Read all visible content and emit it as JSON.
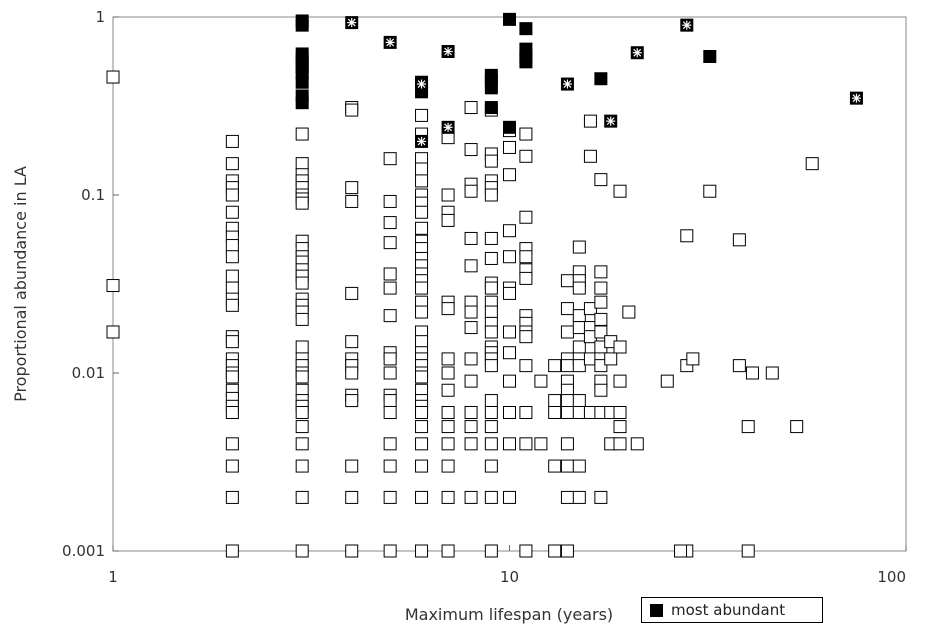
{
  "chart_data": {
    "type": "scatter",
    "title": "",
    "xlabel": "Maximum lifespan (years)",
    "ylabel": "Proportional abundance in LA",
    "x_scale": "log",
    "y_scale": "log",
    "xlim": [
      1,
      100
    ],
    "ylim": [
      0.001,
      1
    ],
    "x_ticks": [
      "1",
      "10",
      "100"
    ],
    "y_ticks": [
      "0.001",
      "0.01",
      "0.1",
      "1"
    ],
    "grid": false,
    "legend": {
      "position": "bottom-right",
      "entries": [
        "most abundant"
      ]
    },
    "series": [
      {
        "marker": "open-square",
        "points": [
          [
            1,
            0.46
          ],
          [
            1,
            0.031
          ],
          [
            1,
            0.017
          ],
          [
            2,
            0.2
          ],
          [
            2,
            0.15
          ],
          [
            2,
            0.12
          ],
          [
            2,
            0.11
          ],
          [
            2,
            0.1
          ],
          [
            2,
            0.08
          ],
          [
            2,
            0.065
          ],
          [
            2,
            0.058
          ],
          [
            2,
            0.052
          ],
          [
            2,
            0.045
          ],
          [
            2,
            0.035
          ],
          [
            2,
            0.03
          ],
          [
            2,
            0.026
          ],
          [
            2,
            0.024
          ],
          [
            2,
            0.016
          ],
          [
            2,
            0.015
          ],
          [
            2,
            0.012
          ],
          [
            2,
            0.011
          ],
          [
            2,
            0.01
          ],
          [
            2,
            0.0095
          ],
          [
            2,
            0.008
          ],
          [
            2,
            0.0072
          ],
          [
            2,
            0.0065
          ],
          [
            2,
            0.006
          ],
          [
            2,
            0.004
          ],
          [
            2,
            0.003
          ],
          [
            2,
            0.002
          ],
          [
            2,
            0.001
          ],
          [
            3,
            0.22
          ],
          [
            3,
            0.15
          ],
          [
            3,
            0.13
          ],
          [
            3,
            0.12
          ],
          [
            3,
            0.11
          ],
          [
            3,
            0.1
          ],
          [
            3,
            0.095
          ],
          [
            3,
            0.09
          ],
          [
            3,
            0.055
          ],
          [
            3,
            0.05
          ],
          [
            3,
            0.045
          ],
          [
            3,
            0.042
          ],
          [
            3,
            0.038
          ],
          [
            3,
            0.035
          ],
          [
            3,
            0.032
          ],
          [
            3,
            0.026
          ],
          [
            3,
            0.024
          ],
          [
            3,
            0.022
          ],
          [
            3,
            0.02
          ],
          [
            3,
            0.014
          ],
          [
            3,
            0.012
          ],
          [
            3,
            0.011
          ],
          [
            3,
            0.01
          ],
          [
            3,
            0.0095
          ],
          [
            3,
            0.008
          ],
          [
            3,
            0.007
          ],
          [
            3,
            0.0065
          ],
          [
            3,
            0.006
          ],
          [
            3,
            0.005
          ],
          [
            3,
            0.004
          ],
          [
            3,
            0.003
          ],
          [
            3,
            0.002
          ],
          [
            3,
            0.001
          ],
          [
            4,
            0.31
          ],
          [
            4,
            0.3
          ],
          [
            4,
            0.11
          ],
          [
            4,
            0.092
          ],
          [
            4,
            0.028
          ],
          [
            4,
            0.015
          ],
          [
            4,
            0.012
          ],
          [
            4,
            0.011
          ],
          [
            4,
            0.01
          ],
          [
            4,
            0.0075
          ],
          [
            4,
            0.007
          ],
          [
            4,
            0.003
          ],
          [
            4,
            0.002
          ],
          [
            4,
            0.001
          ],
          [
            5,
            0.16
          ],
          [
            5,
            0.092
          ],
          [
            5,
            0.07
          ],
          [
            5,
            0.054
          ],
          [
            5,
            0.036
          ],
          [
            5,
            0.03
          ],
          [
            5,
            0.021
          ],
          [
            5,
            0.013
          ],
          [
            5,
            0.012
          ],
          [
            5,
            0.01
          ],
          [
            5,
            0.0075
          ],
          [
            5,
            0.007
          ],
          [
            5,
            0.006
          ],
          [
            5,
            0.004
          ],
          [
            5,
            0.003
          ],
          [
            5,
            0.002
          ],
          [
            5,
            0.001
          ],
          [
            6,
            0.28
          ],
          [
            6,
            0.22
          ],
          [
            6,
            0.16
          ],
          [
            6,
            0.14
          ],
          [
            6,
            0.12
          ],
          [
            6,
            0.1
          ],
          [
            6,
            0.09
          ],
          [
            6,
            0.08
          ],
          [
            6,
            0.065
          ],
          [
            6,
            0.055
          ],
          [
            6,
            0.05
          ],
          [
            6,
            0.044
          ],
          [
            6,
            0.04
          ],
          [
            6,
            0.036
          ],
          [
            6,
            0.033
          ],
          [
            6,
            0.03
          ],
          [
            6,
            0.025
          ],
          [
            6,
            0.022
          ],
          [
            6,
            0.017
          ],
          [
            6,
            0.015
          ],
          [
            6,
            0.013
          ],
          [
            6,
            0.012
          ],
          [
            6,
            0.011
          ],
          [
            6,
            0.01
          ],
          [
            6,
            0.0095
          ],
          [
            6,
            0.008
          ],
          [
            6,
            0.007
          ],
          [
            6,
            0.0065
          ],
          [
            6,
            0.006
          ],
          [
            6,
            0.005
          ],
          [
            6,
            0.004
          ],
          [
            6,
            0.003
          ],
          [
            6,
            0.002
          ],
          [
            6,
            0.001
          ],
          [
            7,
            0.21
          ],
          [
            7,
            0.1
          ],
          [
            7,
            0.08
          ],
          [
            7,
            0.072
          ],
          [
            7,
            0.025
          ],
          [
            7,
            0.023
          ],
          [
            7,
            0.012
          ],
          [
            7,
            0.01
          ],
          [
            7,
            0.008
          ],
          [
            7,
            0.006
          ],
          [
            7,
            0.005
          ],
          [
            7,
            0.004
          ],
          [
            7,
            0.003
          ],
          [
            7,
            0.002
          ],
          [
            7,
            0.001
          ],
          [
            8,
            0.31
          ],
          [
            8,
            0.18
          ],
          [
            8,
            0.115
          ],
          [
            8,
            0.105
          ],
          [
            8,
            0.057
          ],
          [
            8,
            0.04
          ],
          [
            8,
            0.025
          ],
          [
            8,
            0.022
          ],
          [
            8,
            0.018
          ],
          [
            8,
            0.012
          ],
          [
            8,
            0.009
          ],
          [
            8,
            0.006
          ],
          [
            8,
            0.005
          ],
          [
            8,
            0.004
          ],
          [
            8,
            0.002
          ],
          [
            9,
            0.3
          ],
          [
            9,
            0.17
          ],
          [
            9,
            0.155
          ],
          [
            9,
            0.12
          ],
          [
            9,
            0.11
          ],
          [
            9,
            0.1
          ],
          [
            9,
            0.057
          ],
          [
            9,
            0.044
          ],
          [
            9,
            0.032
          ],
          [
            9,
            0.03
          ],
          [
            9,
            0.025
          ],
          [
            9,
            0.022
          ],
          [
            9,
            0.019
          ],
          [
            9,
            0.017
          ],
          [
            9,
            0.014
          ],
          [
            9,
            0.013
          ],
          [
            9,
            0.012
          ],
          [
            9,
            0.011
          ],
          [
            9,
            0.007
          ],
          [
            9,
            0.006
          ],
          [
            9,
            0.005
          ],
          [
            9,
            0.004
          ],
          [
            9,
            0.003
          ],
          [
            9,
            0.002
          ],
          [
            9,
            0.001
          ],
          [
            10,
            0.23
          ],
          [
            10,
            0.185
          ],
          [
            10,
            0.13
          ],
          [
            10,
            0.063
          ],
          [
            10,
            0.045
          ],
          [
            10,
            0.03
          ],
          [
            10,
            0.028
          ],
          [
            10,
            0.017
          ],
          [
            10,
            0.013
          ],
          [
            10,
            0.009
          ],
          [
            10,
            0.006
          ],
          [
            10,
            0.004
          ],
          [
            10,
            0.002
          ],
          [
            11,
            0.22
          ],
          [
            11,
            0.165
          ],
          [
            11,
            0.075
          ],
          [
            11,
            0.05
          ],
          [
            11,
            0.045
          ],
          [
            11,
            0.038
          ],
          [
            11,
            0.034
          ],
          [
            11,
            0.021
          ],
          [
            11,
            0.019
          ],
          [
            11,
            0.017
          ],
          [
            11,
            0.016
          ],
          [
            11,
            0.011
          ],
          [
            11,
            0.006
          ],
          [
            11,
            0.004
          ],
          [
            11,
            0.001
          ],
          [
            12,
            0.009
          ],
          [
            12,
            0.004
          ],
          [
            13,
            0.011
          ],
          [
            13,
            0.007
          ],
          [
            13,
            0.006
          ],
          [
            13,
            0.003
          ],
          [
            13,
            0.001
          ],
          [
            14,
            0.033
          ],
          [
            14,
            0.023
          ],
          [
            14,
            0.017
          ],
          [
            14,
            0.012
          ],
          [
            14,
            0.011
          ],
          [
            14,
            0.009
          ],
          [
            14,
            0.008
          ],
          [
            14,
            0.007
          ],
          [
            14,
            0.006
          ],
          [
            14,
            0.004
          ],
          [
            14,
            0.003
          ],
          [
            14,
            0.002
          ],
          [
            14,
            0.001
          ],
          [
            15,
            0.051
          ],
          [
            15,
            0.037
          ],
          [
            15,
            0.033
          ],
          [
            15,
            0.03
          ],
          [
            15,
            0.021
          ],
          [
            15,
            0.018
          ],
          [
            15,
            0.014
          ],
          [
            15,
            0.012
          ],
          [
            15,
            0.011
          ],
          [
            15,
            0.007
          ],
          [
            15,
            0.006
          ],
          [
            15,
            0.003
          ],
          [
            15,
            0.002
          ],
          [
            16,
            0.26
          ],
          [
            16,
            0.165
          ],
          [
            16,
            0.023
          ],
          [
            16,
            0.018
          ],
          [
            16,
            0.016
          ],
          [
            16,
            0.012
          ],
          [
            16,
            0.006
          ],
          [
            17,
            0.122
          ],
          [
            17,
            0.037
          ],
          [
            17,
            0.03
          ],
          [
            17,
            0.025
          ],
          [
            17,
            0.02
          ],
          [
            17,
            0.017
          ],
          [
            17,
            0.014
          ],
          [
            17,
            0.012
          ],
          [
            17,
            0.011
          ],
          [
            17,
            0.009
          ],
          [
            17,
            0.008
          ],
          [
            17,
            0.006
          ],
          [
            17,
            0.002
          ],
          [
            18,
            0.015
          ],
          [
            18,
            0.012
          ],
          [
            18,
            0.006
          ],
          [
            18,
            0.004
          ],
          [
            19,
            0.105
          ],
          [
            19,
            0.014
          ],
          [
            19,
            0.009
          ],
          [
            19,
            0.006
          ],
          [
            19,
            0.005
          ],
          [
            19,
            0.004
          ],
          [
            20,
            0.022
          ],
          [
            21,
            0.004
          ],
          [
            25,
            0.009
          ],
          [
            28,
            0.059
          ],
          [
            28,
            0.011
          ],
          [
            28,
            0.001
          ],
          [
            27,
            0.001
          ],
          [
            29,
            0.012
          ],
          [
            32,
            0.105
          ],
          [
            38,
            0.056
          ],
          [
            38,
            0.011
          ],
          [
            40,
            0.005
          ],
          [
            40,
            0.001
          ],
          [
            41,
            0.01
          ],
          [
            46,
            0.01
          ],
          [
            53,
            0.005
          ],
          [
            58,
            0.15
          ]
        ]
      },
      {
        "name": "most abundant",
        "marker": "filled-square",
        "points": [
          [
            3,
            0.95
          ],
          [
            3,
            0.9
          ],
          [
            3,
            0.62
          ],
          [
            3,
            0.58
          ],
          [
            3,
            0.55
          ],
          [
            3,
            0.52
          ],
          [
            3,
            0.48
          ],
          [
            3,
            0.43
          ],
          [
            3,
            0.36
          ],
          [
            3,
            0.33
          ],
          [
            6,
            0.43
          ],
          [
            6,
            0.38
          ],
          [
            9,
            0.47
          ],
          [
            9,
            0.44
          ],
          [
            9,
            0.4
          ],
          [
            9,
            0.31
          ],
          [
            10,
            0.97
          ],
          [
            10,
            0.24
          ],
          [
            11,
            0.86
          ],
          [
            11,
            0.66
          ],
          [
            11,
            0.6
          ],
          [
            11,
            0.56
          ],
          [
            17,
            0.45
          ],
          [
            32,
            0.6
          ]
        ]
      },
      {
        "marker": "filled-square-with-star",
        "points": [
          [
            4,
            0.93
          ],
          [
            5,
            0.72
          ],
          [
            6,
            0.42
          ],
          [
            6,
            0.2
          ],
          [
            7,
            0.64
          ],
          [
            7,
            0.24
          ],
          [
            14,
            0.42
          ],
          [
            18,
            0.26
          ],
          [
            21,
            0.63
          ],
          [
            28,
            0.9
          ],
          [
            75,
            0.35
          ]
        ]
      }
    ]
  }
}
